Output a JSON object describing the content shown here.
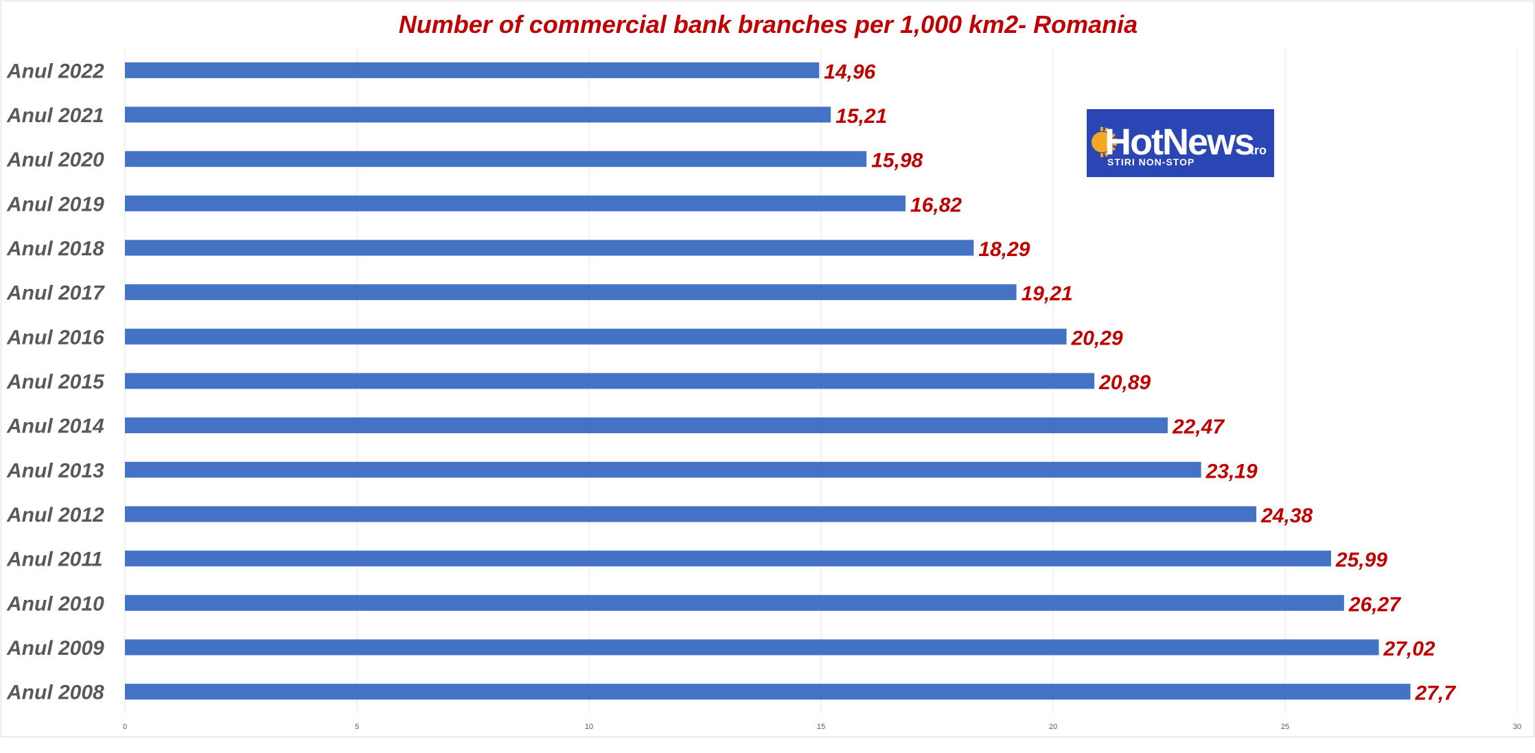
{
  "chart_data": {
    "type": "bar",
    "orientation": "horizontal",
    "title": "Number of commercial bank branches per 1,000 km2- Romania",
    "categories": [
      "Anul 2022",
      "Anul 2021",
      "Anul 2020",
      "Anul 2019",
      "Anul 2018",
      "Anul 2017",
      "Anul 2016",
      "Anul 2015",
      "Anul 2014",
      "Anul 2013",
      "Anul 2012",
      "Anul 2011",
      "Anul 2010",
      "Anul 2009",
      "Anul 2008"
    ],
    "values": [
      14.96,
      15.21,
      15.98,
      16.82,
      18.29,
      19.21,
      20.29,
      20.89,
      22.47,
      23.19,
      24.38,
      25.99,
      26.27,
      27.02,
      27.7
    ],
    "value_labels": [
      "14,96",
      "15,21",
      "15,98",
      "16,82",
      "18,29",
      "19,21",
      "20,29",
      "20,89",
      "22,47",
      "23,19",
      "24,38",
      "25,99",
      "26,27",
      "27,02",
      "27,7"
    ],
    "xlim": [
      0,
      30
    ],
    "xticks": [
      0,
      5,
      10,
      15,
      20,
      25,
      30
    ],
    "grid": true,
    "legend": "none",
    "bar_color": "#4472c4",
    "label_color": "#c00000",
    "title_color": "#c00000",
    "category_color": "#595959"
  },
  "logo": {
    "name": "HotNews",
    "suffix": ".ro",
    "tagline": "STIRI NON-STOP",
    "background": "#2a45b4",
    "accent": "#f5a623",
    "icon": "sun-icon"
  }
}
